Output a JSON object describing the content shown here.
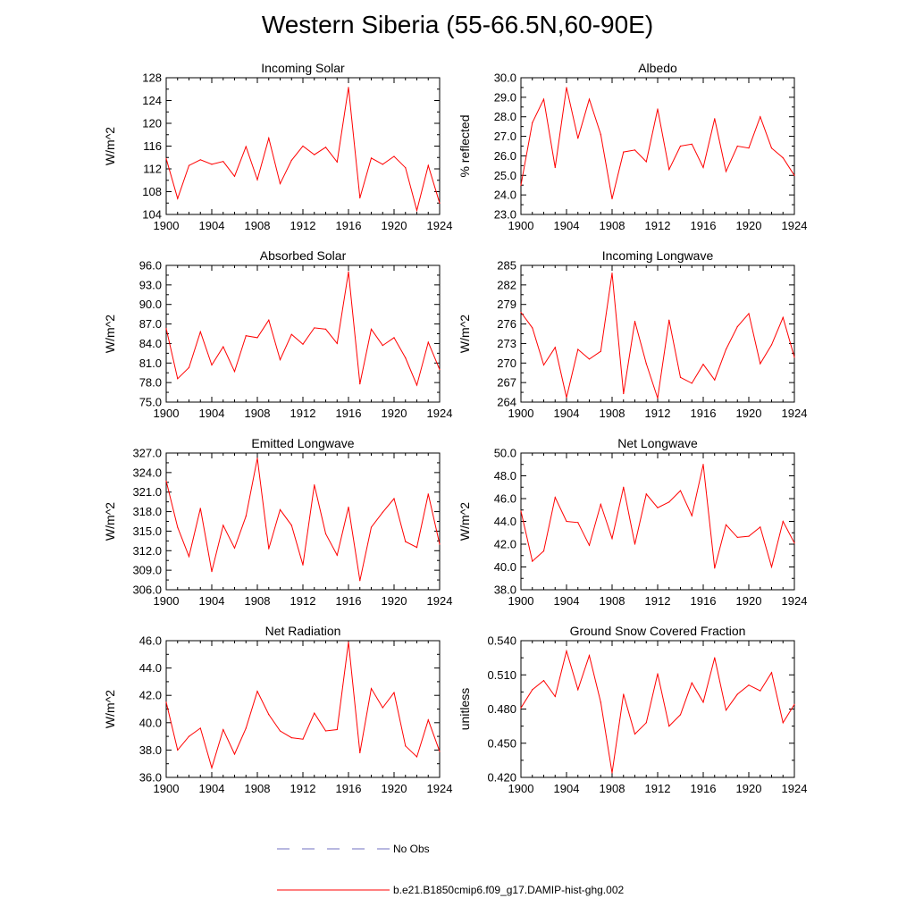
{
  "title": "Western Siberia (55-66.5N,60-90E)",
  "colors": {
    "model": "#ff0000",
    "obs": "#7070c0",
    "axis": "#000000"
  },
  "legend": {
    "obs_label": "No Obs",
    "model_label": "b.e21.B1850cmip6.f09_g17.DAMIP-hist-ghg.002"
  },
  "chart_data": [
    {
      "type": "line",
      "title": "Incoming Solar",
      "ylabel": "W/m^2",
      "xlim": [
        1900,
        1924
      ],
      "ylim": [
        104,
        128
      ],
      "xticks": [
        1900,
        1904,
        1908,
        1912,
        1916,
        1920,
        1924
      ],
      "yticks": [
        "104",
        "108",
        "112",
        "116",
        "120",
        "124",
        "128"
      ],
      "series": [
        {
          "x": [
            1900,
            1901,
            1902,
            1903,
            1904,
            1905,
            1906,
            1907,
            1908,
            1909,
            1910,
            1911,
            1912,
            1913,
            1914,
            1915,
            1916,
            1917,
            1918,
            1919,
            1920,
            1921,
            1922,
            1923,
            1924
          ],
          "values": [
            113.8,
            106.8,
            112.6,
            113.6,
            112.8,
            113.3,
            110.7,
            115.9,
            110.1,
            117.4,
            109.4,
            113.5,
            116.0,
            114.5,
            115.8,
            113.2,
            126.3,
            106.9,
            113.9,
            112.8,
            114.2,
            112.2,
            104.7,
            112.6,
            106.0
          ]
        }
      ]
    },
    {
      "type": "line",
      "title": "Albedo",
      "ylabel": "% reflected",
      "xlim": [
        1900,
        1924
      ],
      "ylim": [
        23.0,
        30.0
      ],
      "xticks": [
        1900,
        1904,
        1908,
        1912,
        1916,
        1920,
        1924
      ],
      "yticks": [
        "23.0",
        "24.0",
        "25.0",
        "26.0",
        "27.0",
        "28.0",
        "29.0",
        "30.0"
      ],
      "series": [
        {
          "x": [
            1900,
            1901,
            1902,
            1903,
            1904,
            1905,
            1906,
            1907,
            1908,
            1909,
            1910,
            1911,
            1912,
            1913,
            1914,
            1915,
            1916,
            1917,
            1918,
            1919,
            1920,
            1921,
            1922,
            1923,
            1924
          ],
          "values": [
            24.5,
            27.7,
            28.9,
            25.4,
            29.5,
            26.9,
            28.9,
            27.1,
            23.8,
            26.2,
            26.3,
            25.7,
            28.4,
            25.3,
            26.5,
            26.6,
            25.4,
            27.9,
            25.2,
            26.5,
            26.4,
            28.0,
            26.4,
            25.9,
            25.0
          ]
        }
      ]
    },
    {
      "type": "line",
      "title": "Absorbed Solar",
      "ylabel": "W/m^2",
      "xlim": [
        1900,
        1924
      ],
      "ylim": [
        75.0,
        96.0
      ],
      "xticks": [
        1900,
        1904,
        1908,
        1912,
        1916,
        1920,
        1924
      ],
      "yticks": [
        "75.0",
        "78.0",
        "81.0",
        "84.0",
        "87.0",
        "90.0",
        "93.0",
        "96.0"
      ],
      "series": [
        {
          "x": [
            1900,
            1901,
            1902,
            1903,
            1904,
            1905,
            1906,
            1907,
            1908,
            1909,
            1910,
            1911,
            1912,
            1913,
            1914,
            1915,
            1916,
            1917,
            1918,
            1919,
            1920,
            1921,
            1922,
            1923,
            1924
          ],
          "values": [
            86.3,
            78.6,
            80.3,
            85.8,
            80.7,
            83.5,
            79.7,
            85.2,
            84.9,
            87.6,
            81.5,
            85.4,
            83.9,
            86.4,
            86.2,
            84.0,
            95.0,
            77.8,
            86.2,
            83.7,
            84.9,
            81.8,
            77.6,
            84.2,
            80.0
          ]
        }
      ]
    },
    {
      "type": "line",
      "title": "Incoming Longwave",
      "ylabel": "W/m^2",
      "xlim": [
        1900,
        1924
      ],
      "ylim": [
        264,
        285
      ],
      "xticks": [
        1900,
        1904,
        1908,
        1912,
        1916,
        1920,
        1924
      ],
      "yticks": [
        "264",
        "267",
        "270",
        "273",
        "276",
        "279",
        "282",
        "285"
      ],
      "series": [
        {
          "x": [
            1900,
            1901,
            1902,
            1903,
            1904,
            1905,
            1906,
            1907,
            1908,
            1909,
            1910,
            1911,
            1912,
            1913,
            1914,
            1915,
            1916,
            1917,
            1918,
            1919,
            1920,
            1921,
            1922,
            1923,
            1924
          ],
          "values": [
            277.8,
            275.4,
            269.7,
            272.4,
            264.7,
            272.1,
            270.6,
            271.8,
            283.8,
            265.3,
            276.4,
            269.9,
            264.6,
            276.6,
            267.8,
            266.9,
            269.8,
            267.4,
            272.1,
            275.6,
            277.6,
            269.9,
            272.8,
            277.0,
            270.9
          ]
        }
      ]
    },
    {
      "type": "line",
      "title": "Emitted Longwave",
      "ylabel": "W/m^2",
      "xlim": [
        1900,
        1924
      ],
      "ylim": [
        306.0,
        327.0
      ],
      "xticks": [
        1900,
        1904,
        1908,
        1912,
        1916,
        1920,
        1924
      ],
      "yticks": [
        "306.0",
        "309.0",
        "312.0",
        "315.0",
        "318.0",
        "321.0",
        "324.0",
        "327.0"
      ],
      "series": [
        {
          "x": [
            1900,
            1901,
            1902,
            1903,
            1904,
            1905,
            1906,
            1907,
            1908,
            1909,
            1910,
            1911,
            1912,
            1913,
            1914,
            1915,
            1916,
            1917,
            1918,
            1919,
            1920,
            1921,
            1922,
            1923,
            1924
          ],
          "values": [
            322.7,
            315.6,
            311.1,
            318.5,
            308.8,
            315.9,
            312.4,
            317.3,
            326.2,
            312.3,
            318.3,
            315.9,
            309.8,
            322.1,
            314.6,
            311.3,
            318.7,
            307.4,
            315.6,
            317.9,
            320.0,
            313.4,
            312.5,
            320.7,
            313.0
          ]
        }
      ]
    },
    {
      "type": "line",
      "title": "Net Longwave",
      "ylabel": "W/m^2",
      "xlim": [
        1900,
        1924
      ],
      "ylim": [
        38.0,
        50.0
      ],
      "xticks": [
        1900,
        1904,
        1908,
        1912,
        1916,
        1920,
        1924
      ],
      "yticks": [
        "38.0",
        "40.0",
        "42.0",
        "44.0",
        "46.0",
        "48.0",
        "50.0"
      ],
      "series": [
        {
          "x": [
            1900,
            1901,
            1902,
            1903,
            1904,
            1905,
            1906,
            1907,
            1908,
            1909,
            1910,
            1911,
            1912,
            1913,
            1914,
            1915,
            1916,
            1917,
            1918,
            1919,
            1920,
            1921,
            1922,
            1923,
            1924
          ],
          "values": [
            44.9,
            40.5,
            41.4,
            46.1,
            44.0,
            43.9,
            41.9,
            45.5,
            42.5,
            47.0,
            42.0,
            46.4,
            45.2,
            45.7,
            46.7,
            44.5,
            49.0,
            39.9,
            43.7,
            42.6,
            42.7,
            43.5,
            40.0,
            44.0,
            42.1
          ]
        }
      ]
    },
    {
      "type": "line",
      "title": "Net Radiation",
      "ylabel": "W/m^2",
      "xlim": [
        1900,
        1924
      ],
      "ylim": [
        36.0,
        46.0
      ],
      "xticks": [
        1900,
        1904,
        1908,
        1912,
        1916,
        1920,
        1924
      ],
      "yticks": [
        "36.0",
        "38.0",
        "40.0",
        "42.0",
        "44.0",
        "46.0"
      ],
      "series": [
        {
          "x": [
            1900,
            1901,
            1902,
            1903,
            1904,
            1905,
            1906,
            1907,
            1908,
            1909,
            1910,
            1911,
            1912,
            1913,
            1914,
            1915,
            1916,
            1917,
            1918,
            1919,
            1920,
            1921,
            1922,
            1923,
            1924
          ],
          "values": [
            41.5,
            38.0,
            39.0,
            39.6,
            36.7,
            39.5,
            37.7,
            39.6,
            42.3,
            40.6,
            39.4,
            38.9,
            38.8,
            40.7,
            39.4,
            39.5,
            45.9,
            37.8,
            42.5,
            41.1,
            42.2,
            38.3,
            37.5,
            40.2,
            37.9
          ]
        }
      ]
    },
    {
      "type": "line",
      "title": "Ground Snow Covered Fraction",
      "ylabel": "unitless",
      "xlim": [
        1900,
        1924
      ],
      "ylim": [
        0.42,
        0.54
      ],
      "xticks": [
        1900,
        1904,
        1908,
        1912,
        1916,
        1920,
        1924
      ],
      "yticks": [
        "0.420",
        "0.450",
        "0.480",
        "0.510",
        "0.540"
      ],
      "series": [
        {
          "x": [
            1900,
            1901,
            1902,
            1903,
            1904,
            1905,
            1906,
            1907,
            1908,
            1909,
            1910,
            1911,
            1912,
            1913,
            1914,
            1915,
            1916,
            1917,
            1918,
            1919,
            1920,
            1921,
            1922,
            1923,
            1924
          ],
          "values": [
            0.481,
            0.497,
            0.505,
            0.491,
            0.531,
            0.497,
            0.527,
            0.486,
            0.424,
            0.493,
            0.458,
            0.468,
            0.511,
            0.465,
            0.475,
            0.503,
            0.486,
            0.525,
            0.479,
            0.493,
            0.501,
            0.496,
            0.512,
            0.468,
            0.484
          ]
        }
      ]
    }
  ]
}
